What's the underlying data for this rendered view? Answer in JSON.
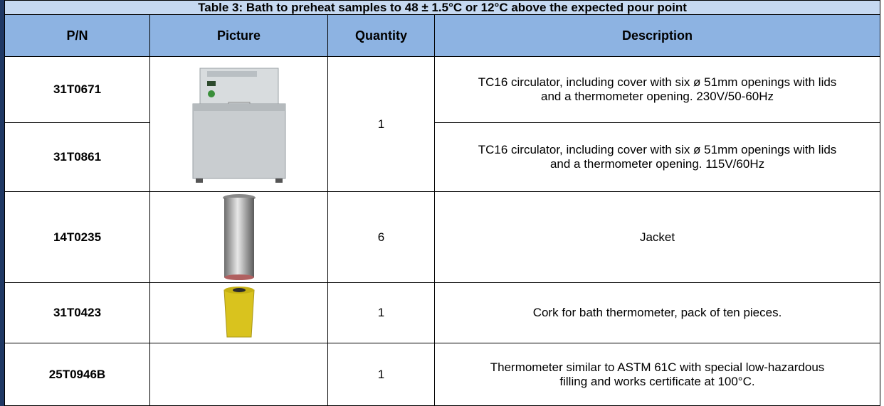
{
  "table": {
    "title": "Table 3: Bath to preheat samples to 48 ± 1.5°C or 12°C above the expected pour point",
    "headers": [
      "P/N",
      "Picture",
      "Quantity",
      "Description"
    ],
    "rows": [
      {
        "pn": "31T0671",
        "quantity": "1",
        "description": "TC16 circulator, including cover with six ø 51mm openings with lids and a thermometer opening. 230V/50-60Hz"
      },
      {
        "pn": "31T0861",
        "description": "TC16 circulator, including cover with six ø 51mm openings with lids and a thermometer opening. 115V/60Hz"
      },
      {
        "pn": "14T0235",
        "quantity": "6",
        "description": "Jacket"
      },
      {
        "pn": "31T0423",
        "quantity": "1",
        "description": "Cork for bath thermometer, pack of ten pieces."
      },
      {
        "pn": "25T0946B",
        "quantity": "1",
        "description": "Thermometer similar to  ASTM 61C with special low-hazardous filling and works certificate at 100°C."
      }
    ]
  }
}
